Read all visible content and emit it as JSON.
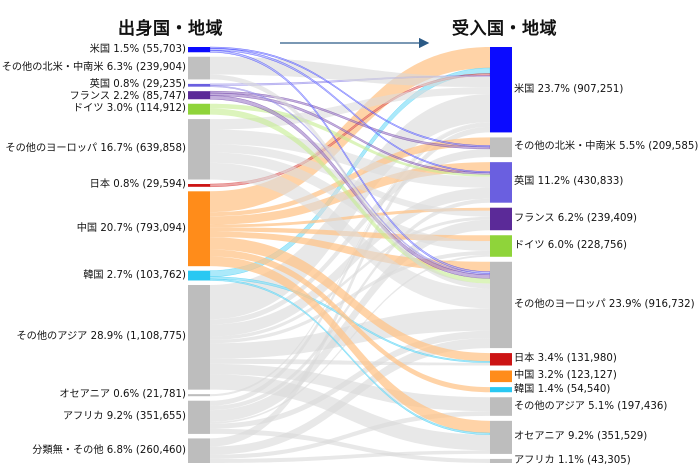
{
  "headers": {
    "origin": "出身国・地域",
    "destination": "受入国・地域"
  },
  "colors": {
    "us": "#0b0bff",
    "na_other": "#c0c0c0",
    "uk": "#6a5fe0",
    "fr": "#5b2a98",
    "de": "#8fd43a",
    "eu_other": "#bdbdbd",
    "jp": "#cc1414",
    "cn": "#ff8c1a",
    "kr": "#29c8f2",
    "asia_other": "#bdbdbd",
    "oceania": "#bdbdbd",
    "africa": "#bdbdbd",
    "unclassified": "#bdbdbd"
  },
  "origins": [
    {
      "id": "us",
      "label": "米国 1.5% (55,703)",
      "value": 55703
    },
    {
      "id": "na_other",
      "label": "その他の北米・中南米 6.3% (239,904)",
      "value": 239904
    },
    {
      "id": "uk",
      "label": "英国 0.8% (29,235)",
      "value": 29235
    },
    {
      "id": "fr",
      "label": "フランス 2.2% (85,747)",
      "value": 85747
    },
    {
      "id": "de",
      "label": "ドイツ 3.0% (114,912)",
      "value": 114912
    },
    {
      "id": "eu_other",
      "label": "その他のヨーロッパ 16.7% (639,858)",
      "value": 639858
    },
    {
      "id": "jp",
      "label": "日本 0.8% (29,594)",
      "value": 29594
    },
    {
      "id": "cn",
      "label": "中国 20.7% (793,094)",
      "value": 793094
    },
    {
      "id": "kr",
      "label": "韓国 2.7% (103,762)",
      "value": 103762
    },
    {
      "id": "asia_other",
      "label": "その他のアジア 28.9% (1,108,775)",
      "value": 1108775
    },
    {
      "id": "oceania",
      "label": "オセアニア 0.6% (21,781)",
      "value": 21781
    },
    {
      "id": "africa",
      "label": "アフリカ 9.2% (351,655)",
      "value": 351655
    },
    {
      "id": "unclassified",
      "label": "分類無・その他 6.8% (260,460)",
      "value": 260460
    }
  ],
  "destinations": [
    {
      "id": "us",
      "label": "米国 23.7% (907,251)",
      "value": 907251
    },
    {
      "id": "na_other",
      "label": "その他の北米・中南米 5.5% (209,585)",
      "value": 209585
    },
    {
      "id": "uk",
      "label": "英国 11.2% (430,833)",
      "value": 430833
    },
    {
      "id": "fr",
      "label": "フランス 6.2% (239,409)",
      "value": 239409
    },
    {
      "id": "de",
      "label": "ドイツ 6.0% (228,756)",
      "value": 228756
    },
    {
      "id": "eu_other",
      "label": "その他のヨーロッパ 23.9% (916,732)",
      "value": 916732
    },
    {
      "id": "jp",
      "label": "日本 3.4% (131,980)",
      "value": 131980
    },
    {
      "id": "cn",
      "label": "中国 3.2% (123,127)",
      "value": 123127
    },
    {
      "id": "kr",
      "label": "韓国 1.4% (54,540)",
      "value": 54540
    },
    {
      "id": "asia_other",
      "label": "その他のアジア 5.1% (197,436)",
      "value": 197436
    },
    {
      "id": "oceania",
      "label": "オセアニア 9.2% (351,529)",
      "value": 351529
    },
    {
      "id": "africa",
      "label": "アフリカ 1.1% (43,305)",
      "value": 43305
    }
  ],
  "flows": [
    {
      "from": "cn",
      "to": "us",
      "weight": 30
    },
    {
      "from": "cn",
      "to": "uk",
      "weight": 12
    },
    {
      "from": "cn",
      "to": "fr",
      "weight": 4
    },
    {
      "from": "cn",
      "to": "de",
      "weight": 6
    },
    {
      "from": "cn",
      "to": "eu_other",
      "weight": 8
    },
    {
      "from": "cn",
      "to": "jp",
      "weight": 18
    },
    {
      "from": "cn",
      "to": "kr",
      "weight": 10
    },
    {
      "from": "cn",
      "to": "oceania",
      "weight": 14
    },
    {
      "from": "cn",
      "to": "na_other",
      "weight": 6
    },
    {
      "from": "kr",
      "to": "us",
      "weight": 8
    },
    {
      "from": "kr",
      "to": "jp",
      "weight": 3
    },
    {
      "from": "kr",
      "to": "oceania",
      "weight": 2
    },
    {
      "from": "jp",
      "to": "us",
      "weight": 3
    },
    {
      "from": "us",
      "to": "uk",
      "weight": 1.5
    },
    {
      "from": "us",
      "to": "eu_other",
      "weight": 1.5
    },
    {
      "from": "us",
      "to": "na_other",
      "weight": 1
    },
    {
      "from": "uk",
      "to": "us",
      "weight": 1.5
    },
    {
      "from": "uk",
      "to": "eu_other",
      "weight": 1
    },
    {
      "from": "fr",
      "to": "uk",
      "weight": 2
    },
    {
      "from": "fr",
      "to": "eu_other",
      "weight": 3
    },
    {
      "from": "fr",
      "to": "na_other",
      "weight": 1.5
    },
    {
      "from": "de",
      "to": "eu_other",
      "weight": 4
    },
    {
      "from": "de",
      "to": "uk",
      "weight": 3
    },
    {
      "from": "na_other",
      "to": "us",
      "weight": 15
    },
    {
      "from": "na_other",
      "to": "eu_other",
      "weight": 4
    },
    {
      "from": "eu_other",
      "to": "eu_other",
      "weight": 16
    },
    {
      "from": "eu_other",
      "to": "uk",
      "weight": 14
    },
    {
      "from": "eu_other",
      "to": "de",
      "weight": 10
    },
    {
      "from": "eu_other",
      "to": "fr",
      "weight": 8
    },
    {
      "from": "eu_other",
      "to": "us",
      "weight": 10
    },
    {
      "from": "asia_other",
      "to": "us",
      "weight": 40
    },
    {
      "from": "asia_other",
      "to": "uk",
      "weight": 14
    },
    {
      "from": "asia_other",
      "to": "eu_other",
      "weight": 18
    },
    {
      "from": "asia_other",
      "to": "oceania",
      "weight": 18
    },
    {
      "from": "asia_other",
      "to": "asia_other",
      "weight": 12
    },
    {
      "from": "asia_other",
      "to": "fr",
      "weight": 4
    },
    {
      "from": "asia_other",
      "to": "de",
      "weight": 4
    },
    {
      "from": "asia_other",
      "to": "jp",
      "weight": 6
    },
    {
      "from": "asia_other",
      "to": "na_other",
      "weight": 6
    },
    {
      "from": "oceania",
      "to": "us",
      "weight": 0.8
    },
    {
      "from": "africa",
      "to": "fr",
      "weight": 14
    },
    {
      "from": "africa",
      "to": "us",
      "weight": 6
    },
    {
      "from": "africa",
      "to": "uk",
      "weight": 5
    },
    {
      "from": "africa",
      "to": "africa",
      "weight": 6
    },
    {
      "from": "africa",
      "to": "eu_other",
      "weight": 6
    },
    {
      "from": "africa",
      "to": "de",
      "weight": 2
    },
    {
      "from": "unclassified",
      "to": "eu_other",
      "weight": 8
    },
    {
      "from": "unclassified",
      "to": "us",
      "weight": 8
    },
    {
      "from": "unclassified",
      "to": "oceania",
      "weight": 4
    },
    {
      "from": "unclassified",
      "to": "asia_other",
      "weight": 4
    }
  ]
}
